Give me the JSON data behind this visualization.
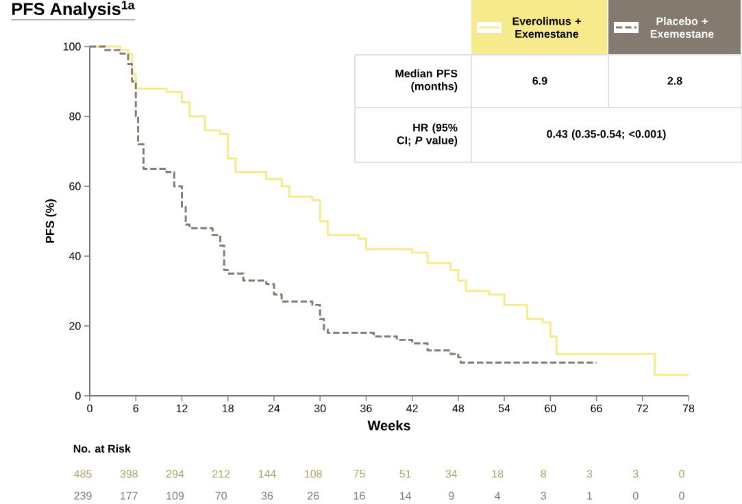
{
  "chart_data": {
    "type": "step",
    "title": "PFS Analysis$^{1a}$",
    "xlabel": "Weeks",
    "ylabel": "PFS (%)",
    "xlim": [
      0,
      78
    ],
    "ylim": [
      0,
      100
    ],
    "xticks": [
      0,
      6,
      12,
      18,
      24,
      30,
      36,
      42,
      48,
      54,
      60,
      66,
      72,
      78
    ],
    "yticks": [
      0,
      20,
      40,
      60,
      80,
      100
    ],
    "grid": false,
    "legend": "top right",
    "marker": "none",
    "series": [
      {
        "name": "Everolimus + Exemestane",
        "color": "#f7ea8c",
        "line_style": "solid",
        "x": [
          0,
          4,
          5,
          5.5,
          6,
          10,
          12,
          13,
          15,
          17,
          18,
          19,
          23,
          25,
          26,
          29,
          30,
          31,
          35,
          36,
          42,
          44,
          47,
          48,
          49,
          52,
          54,
          57,
          59,
          60,
          60.8,
          73.6,
          78
        ],
        "values": [
          100,
          99,
          98,
          92,
          88,
          87,
          84,
          80,
          76,
          75,
          68,
          64,
          62,
          60,
          57,
          56,
          50,
          46,
          45,
          42,
          41,
          38,
          36,
          33,
          30,
          29,
          26,
          22,
          21,
          17,
          12,
          6,
          6
        ]
      },
      {
        "name": "Placebo + Exemestane",
        "color": "#857a70",
        "line_style": "dashed",
        "x": [
          0,
          2,
          4,
          5,
          5.5,
          6,
          6.3,
          7,
          10,
          11,
          12,
          12.5,
          13,
          16,
          17,
          17.5,
          18,
          20,
          23,
          24,
          25,
          29,
          30,
          30.5,
          31,
          37,
          40,
          42,
          44,
          47,
          48,
          48.3,
          66
        ],
        "values": [
          100,
          99,
          98,
          95,
          90,
          80,
          72,
          65,
          64,
          60,
          54,
          49,
          48,
          46,
          43,
          36,
          35,
          33,
          32,
          29,
          27,
          26,
          22,
          19,
          18,
          17,
          16,
          15,
          13,
          12,
          11,
          9.5,
          9.5
        ]
      }
    ],
    "annotations": [
      "Median PFS (months)",
      "6.9",
      "2.8",
      "HR (95% CI; *P* value)",
      "0.43 (0.35-0.54; <0.001)",
      "No. at Risk",
      "485",
      "398",
      "294",
      "212",
      "144",
      "108",
      "75",
      "51",
      "34",
      "18",
      "8",
      "3",
      "3",
      "0",
      "239",
      "177",
      "109",
      "70",
      "36",
      "26",
      "16",
      "14",
      "9",
      "4",
      "3",
      "1",
      "0",
      "0"
    ]
  }
}
